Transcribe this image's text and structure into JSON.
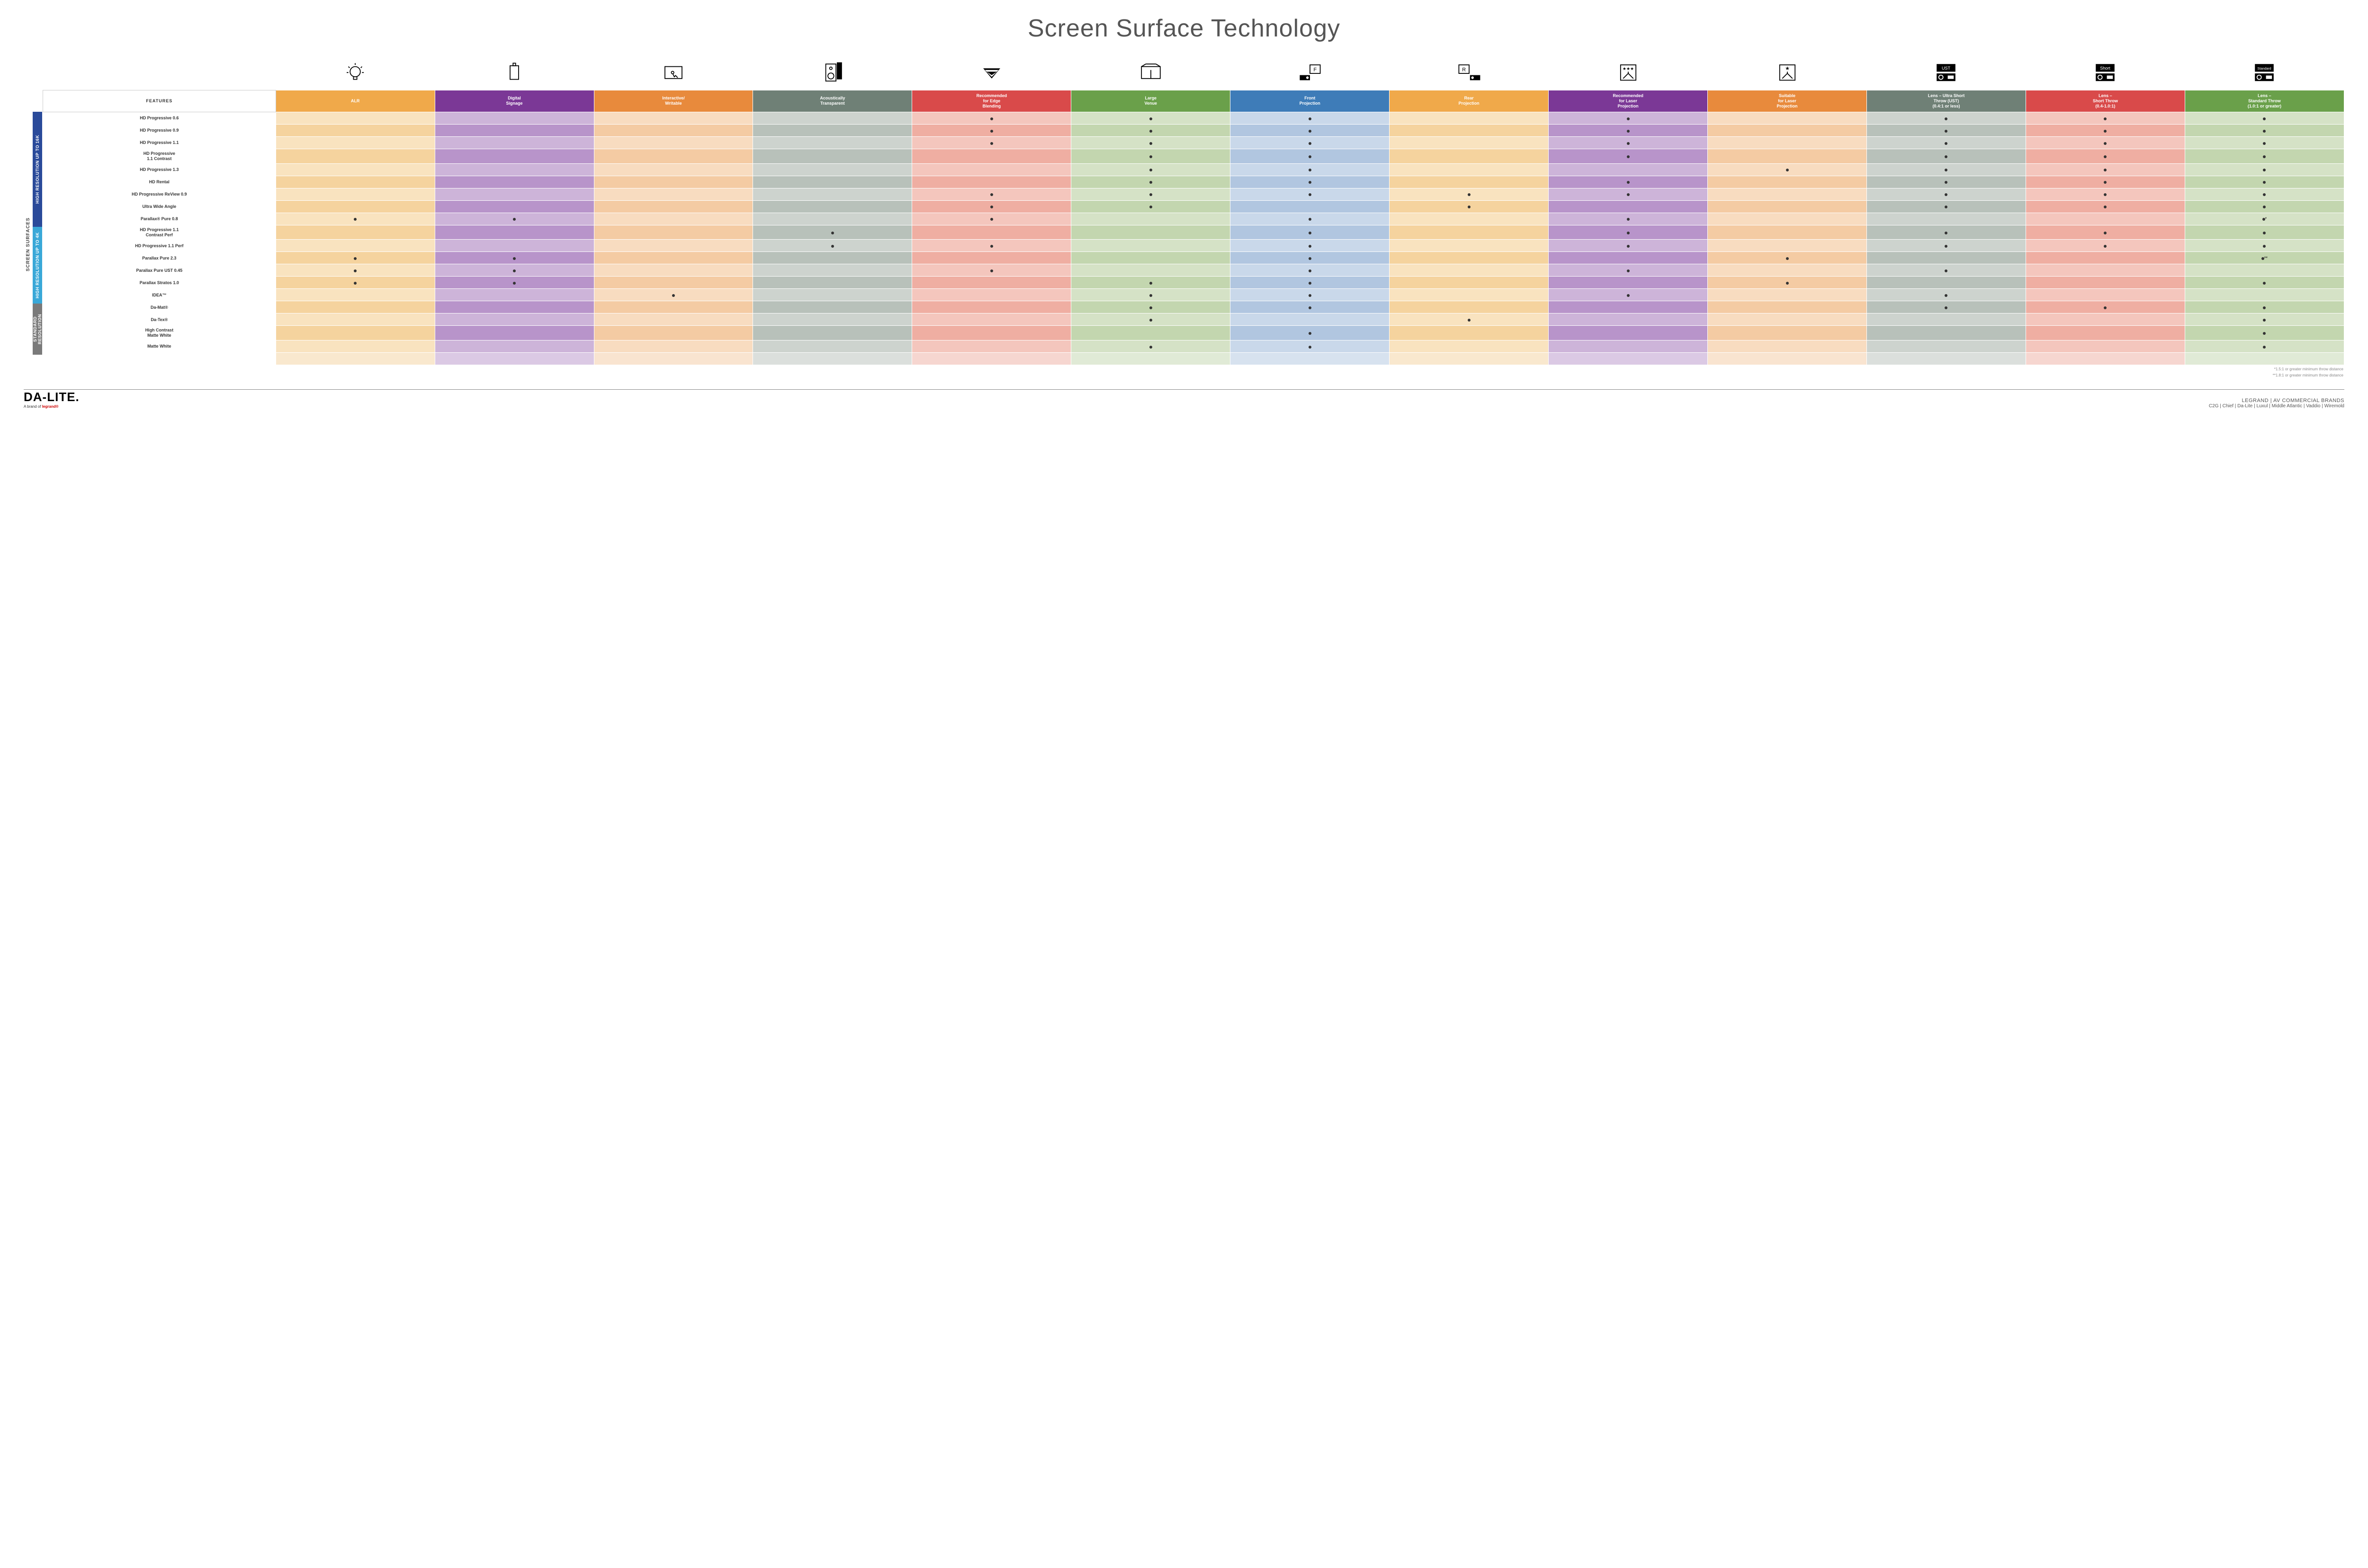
{
  "title": "Screen Surface Technology",
  "columns": [
    {
      "key": "alr",
      "label": "ALR",
      "header_bg": "#f0a94a",
      "colors": [
        "#f9e3bf",
        "#f5d39e"
      ]
    },
    {
      "key": "signage",
      "label": "Digital\nSignage",
      "header_bg": "#7b3896",
      "colors": [
        "#cdb4d9",
        "#b894ca"
      ]
    },
    {
      "key": "writable",
      "label": "Interactive/\nWritable",
      "header_bg": "#e88a3c",
      "colors": [
        "#f8dcc0",
        "#f4cba3"
      ]
    },
    {
      "key": "acoustic",
      "label": "Acoustically\nTransparent",
      "header_bg": "#6f8076",
      "colors": [
        "#cdd3ce",
        "#b8c1ba"
      ]
    },
    {
      "key": "edge",
      "label": "Recommended\nfor Edge\nBlending",
      "header_bg": "#d94a4a",
      "colors": [
        "#f4c6bd",
        "#efaea2"
      ]
    },
    {
      "key": "venue",
      "label": "Large\nVenue",
      "header_bg": "#6aa04a",
      "colors": [
        "#d5e2c6",
        "#c3d6af"
      ]
    },
    {
      "key": "front",
      "label": "Front\nProjection",
      "header_bg": "#3e7cb8",
      "colors": [
        "#c9d8ea",
        "#b1c6e0"
      ]
    },
    {
      "key": "rear",
      "label": "Rear\nProjection",
      "header_bg": "#f0a94a",
      "colors": [
        "#f9e3bf",
        "#f5d39e"
      ]
    },
    {
      "key": "reclaser",
      "label": "Recommended\nfor Laser\nProjection",
      "header_bg": "#7b3896",
      "colors": [
        "#cdb4d9",
        "#b894ca"
      ]
    },
    {
      "key": "suitlaser",
      "label": "Suitable\nfor Laser\nProjection",
      "header_bg": "#e88a3c",
      "colors": [
        "#f8dcc0",
        "#f4cba3"
      ]
    },
    {
      "key": "ust",
      "label": "Lens – Ultra Short\nThrow (UST)\n(0.4:1 or less)",
      "header_bg": "#6f8076",
      "colors": [
        "#cdd3ce",
        "#b8c1ba"
      ]
    },
    {
      "key": "short",
      "label": "Lens –\nShort Throw\n(0.4-1.0:1)",
      "header_bg": "#d94a4a",
      "colors": [
        "#f4c6bd",
        "#efaea2"
      ]
    },
    {
      "key": "std",
      "label": "Lens –\nStandard Throw\n(1.0:1 or greater)",
      "header_bg": "#6aa04a",
      "colors": [
        "#d5e2c6",
        "#c3d6af"
      ]
    }
  ],
  "groups": [
    {
      "label": "HIGH RESOLUTION UP TO 16K",
      "bg": "#2a4a9a",
      "rows": 9
    },
    {
      "label": "HIGH RESOLUTION UP TO 4K",
      "bg": "#3aa8d8",
      "rows": 6
    },
    {
      "label": "STANDARD\nRESOLUTION",
      "bg": "#7a7a7a",
      "rows": 4
    }
  ],
  "side_label": "SCREEN SURFACES",
  "rows": [
    {
      "label": "HD Progressive 0.6",
      "dots": {
        "edge": "•",
        "venue": "•",
        "front": "•",
        "reclaser": "•",
        "ust": "•",
        "short": "•",
        "std": "•"
      }
    },
    {
      "label": "HD Progressive 0.9",
      "dots": {
        "edge": "•",
        "venue": "•",
        "front": "•",
        "reclaser": "•",
        "ust": "•",
        "short": "•",
        "std": "•"
      }
    },
    {
      "label": "HD Progressive 1.1",
      "dots": {
        "edge": "•",
        "venue": "•",
        "front": "•",
        "reclaser": "•",
        "ust": "•",
        "short": "•",
        "std": "•"
      }
    },
    {
      "label": "HD Progressive\n1.1 Contrast",
      "dots": {
        "venue": "•",
        "front": "•",
        "reclaser": "•",
        "ust": "•",
        "short": "•",
        "std": "•"
      }
    },
    {
      "label": "HD Progressive 1.3",
      "dots": {
        "venue": "•",
        "front": "•",
        "suitlaser": "•",
        "ust": "•",
        "short": "•",
        "std": "•"
      }
    },
    {
      "label": "HD Rental",
      "dots": {
        "venue": "•",
        "front": "•",
        "reclaser": "•",
        "ust": "•",
        "short": "•",
        "std": "•"
      }
    },
    {
      "label": "HD Progressive ReView 0.9",
      "dots": {
        "edge": "•",
        "venue": "•",
        "front": "•",
        "rear": "•",
        "reclaser": "•",
        "ust": "•",
        "short": "•",
        "std": "•"
      }
    },
    {
      "label": "Ultra Wide Angle",
      "dots": {
        "edge": "•",
        "venue": "•",
        "rear": "•",
        "ust": "•",
        "short": "•",
        "std": "•"
      }
    },
    {
      "label": "Parallax® Pure 0.8",
      "dots": {
        "alr": "•",
        "signage": "•",
        "edge": "•",
        "front": "•",
        "reclaser": "•",
        "std": "•*"
      }
    },
    {
      "label": "HD Progressive 1.1\nContrast Perf",
      "dots": {
        "acoustic": "•",
        "front": "•",
        "reclaser": "•",
        "ust": "•",
        "short": "•",
        "std": "•"
      }
    },
    {
      "label": "HD Progressive 1.1 Perf",
      "dots": {
        "acoustic": "•",
        "edge": "•",
        "front": "•",
        "reclaser": "•",
        "ust": "•",
        "short": "•",
        "std": "•"
      }
    },
    {
      "label": "Parallax Pure 2.3",
      "dots": {
        "alr": "•",
        "signage": "•",
        "front": "•",
        "suitlaser": "•",
        "std": "•**"
      }
    },
    {
      "label": "Parallax Pure UST 0.45",
      "dots": {
        "alr": "•",
        "signage": "•",
        "edge": "•",
        "front": "•",
        "reclaser": "•",
        "ust": "•"
      }
    },
    {
      "label": "Parallax Stratos 1.0",
      "dots": {
        "alr": "•",
        "signage": "•",
        "venue": "•",
        "front": "•",
        "suitlaser": "•",
        "std": "•"
      }
    },
    {
      "label": "IDEA™",
      "dots": {
        "writable": "•",
        "venue": "•",
        "front": "•",
        "reclaser": "•",
        "ust": "•"
      }
    },
    {
      "label": "Da-Mat®",
      "dots": {
        "venue": "•",
        "front": "•",
        "ust": "•",
        "short": "•",
        "std": "•"
      }
    },
    {
      "label": "Da-Tex®",
      "dots": {
        "venue": "•",
        "rear": "•",
        "std": "•"
      }
    },
    {
      "label": "High Contrast\nMatte White",
      "dots": {
        "front": "•",
        "std": "•"
      }
    },
    {
      "label": "Matte White",
      "dots": {
        "venue": "•",
        "front": "•",
        "std": "•"
      }
    }
  ],
  "footnotes": [
    "*1.5:1 or greater minimum throw distance",
    "**1.8:1 or greater minimum throw distance"
  ],
  "footer": {
    "logo": "DA‑LITE.",
    "logo_sub_prefix": "A brand of ",
    "logo_sub_brand": "legrand®",
    "brands_title": "LEGRAND | AV COMMERCIAL BRANDS",
    "brands_list": "C2G  |  Chief  |  Da-Lite  |  Luxul  |  Middle Atlantic  |  Vaddio  |  Wiremold"
  },
  "features_label": "FEATURES",
  "icons": [
    "bulb",
    "signage",
    "touch",
    "speaker",
    "venue",
    "largev",
    "front",
    "rear",
    "reclaser",
    "suitlaser",
    "ust",
    "short",
    "standard"
  ]
}
